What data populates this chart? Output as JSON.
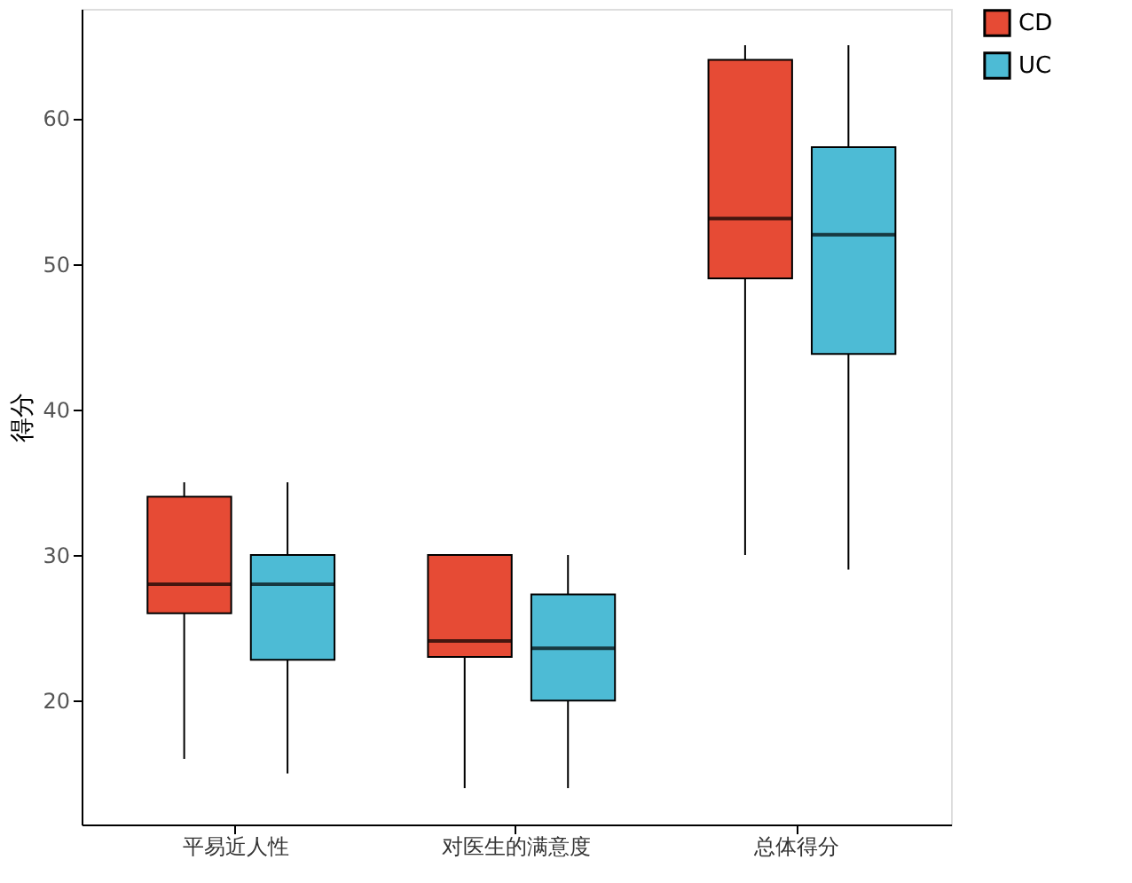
{
  "chart_data": {
    "type": "box",
    "ylabel": "得分",
    "categories": [
      "平易近人性",
      "对医生的满意度",
      "总体得分"
    ],
    "ylim": [
      11.5,
      67.5
    ],
    "yticks": [
      20,
      30,
      40,
      50,
      60
    ],
    "grid": false,
    "legend": "right",
    "series": [
      {
        "name": "CD",
        "color": "#e64b35",
        "boxes": [
          {
            "low": 16,
            "q1": 26,
            "median": 28,
            "q3": 34,
            "high": 35
          },
          {
            "low": 14,
            "q1": 23,
            "median": 24.1,
            "q3": 30,
            "high": 30
          },
          {
            "low": 30,
            "q1": 49,
            "median": 53.1,
            "q3": 64,
            "high": 65
          }
        ]
      },
      {
        "name": "UC",
        "color": "#4dbbd5",
        "boxes": [
          {
            "low": 15,
            "q1": 22.8,
            "median": 28,
            "q3": 30,
            "high": 35
          },
          {
            "low": 14,
            "q1": 20,
            "median": 23.6,
            "q3": 27.3,
            "high": 30
          },
          {
            "low": 29,
            "q1": 43.8,
            "median": 52,
            "q3": 58,
            "high": 65
          }
        ]
      }
    ]
  }
}
